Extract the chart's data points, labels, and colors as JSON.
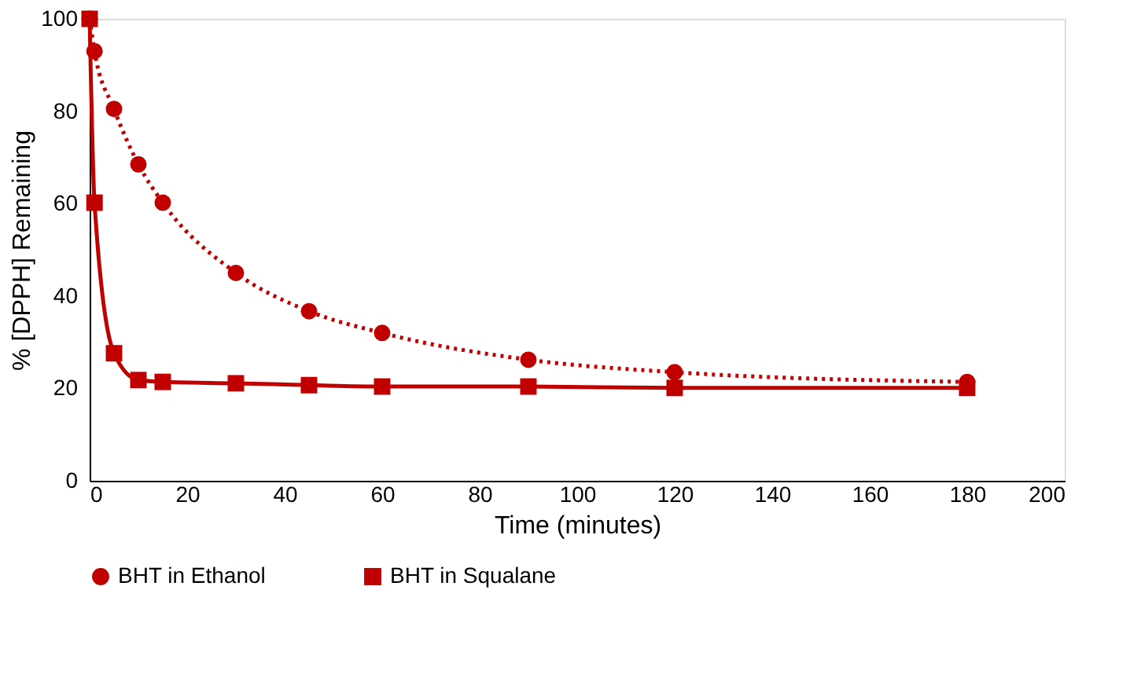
{
  "chart_data": {
    "type": "line",
    "xlabel": "Time (minutes)",
    "ylabel": "% [DPPH] Remaining",
    "xlim": [
      0,
      200
    ],
    "xticks": [
      0,
      20,
      40,
      60,
      80,
      100,
      120,
      140,
      160,
      180,
      200
    ],
    "ylim": [
      0,
      100
    ],
    "yticks": [
      0,
      20,
      40,
      60,
      80,
      100
    ],
    "grid": false,
    "legend": "bottom",
    "series": [
      {
        "name": "BHT in Ethanol",
        "color": "#c00000",
        "marker": "circle",
        "line_style": "dotted",
        "x": [
          0,
          1,
          5,
          10,
          15,
          30,
          45,
          60,
          90,
          120,
          180
        ],
        "values": [
          100,
          93,
          80.5,
          68.5,
          60.2,
          45,
          36.7,
          32,
          26.2,
          23.5,
          21.4
        ]
      },
      {
        "name": "BHT in Squalane",
        "color": "#c00000",
        "marker": "square",
        "line_style": "solid",
        "x": [
          0,
          1,
          5,
          10,
          15,
          30,
          45,
          60,
          90,
          120,
          180
        ],
        "values": [
          100,
          60.2,
          27.6,
          21.8,
          21.4,
          21.1,
          20.7,
          20.4,
          20.4,
          20.1,
          20.1
        ]
      }
    ]
  }
}
